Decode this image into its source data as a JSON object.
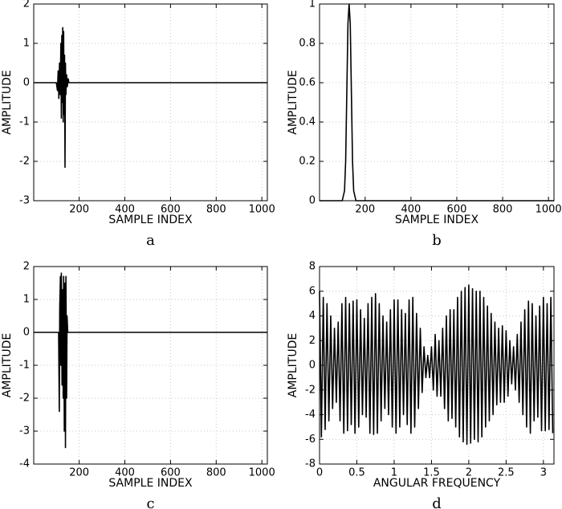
{
  "chart_data": [
    {
      "type": "line",
      "caption": "a",
      "xlabel": "SAMPLE INDEX",
      "ylabel": "AMPLITUDE",
      "color": "#000000",
      "grid": true,
      "xlim": [
        1,
        1024
      ],
      "xticks": [
        200,
        400,
        600,
        800,
        1000
      ],
      "ylim": [
        -3,
        2
      ],
      "yticks": [
        -3,
        -2,
        -1,
        0,
        1,
        2
      ],
      "x": [
        1,
        100,
        105,
        108,
        111,
        114,
        117,
        120,
        122,
        124,
        126,
        128,
        130,
        132,
        134,
        136,
        138,
        140,
        142,
        145,
        148,
        152,
        155,
        1024
      ],
      "values": [
        0,
        0,
        -0.2,
        0.3,
        -0.4,
        0.5,
        -0.3,
        1.0,
        -0.9,
        1.2,
        -0.5,
        1.4,
        -1.0,
        1.3,
        -0.8,
        0.7,
        -2.15,
        0.5,
        -0.3,
        0.2,
        -0.1,
        0.1,
        0,
        0
      ]
    },
    {
      "type": "line",
      "caption": "b",
      "xlabel": "SAMPLE INDEX",
      "ylabel": "AMPLITUDE",
      "color": "#000000",
      "grid": true,
      "xlim": [
        1,
        1024
      ],
      "xticks": [
        200,
        400,
        600,
        800,
        1000
      ],
      "ylim": [
        0,
        1
      ],
      "yticks": [
        0,
        0.2,
        0.4,
        0.6,
        0.8,
        1
      ],
      "x": [
        1,
        100,
        110,
        115,
        120,
        125,
        130,
        135,
        140,
        145,
        150,
        160,
        1024
      ],
      "values": [
        0,
        0,
        0.05,
        0.2,
        0.55,
        0.9,
        1,
        0.9,
        0.55,
        0.2,
        0.05,
        0,
        0
      ]
    },
    {
      "type": "line",
      "caption": "c",
      "xlabel": "SAMPLE INDEX",
      "ylabel": "AMPLITUDE",
      "color": "#000000",
      "grid": true,
      "xlim": [
        1,
        1024
      ],
      "xticks": [
        200,
        400,
        600,
        800,
        1000
      ],
      "ylim": [
        -4,
        2
      ],
      "yticks": [
        -4,
        -3,
        -2,
        -1,
        0,
        1,
        2
      ],
      "x": [
        1,
        110,
        113,
        115,
        118,
        120,
        122,
        125,
        128,
        130,
        132,
        135,
        138,
        140,
        142,
        145,
        147,
        150,
        1024
      ],
      "values": [
        0,
        0,
        -2.4,
        0.8,
        1.7,
        -1.0,
        1.8,
        -1.6,
        1.3,
        -2.0,
        1.7,
        -3.0,
        1.5,
        -3.5,
        1.7,
        -2.0,
        0.5,
        0,
        0
      ]
    },
    {
      "type": "line",
      "caption": "d",
      "xlabel": "ANGULAR FREQUENCY",
      "ylabel": "AMPLITUDE",
      "color": "#000000",
      "grid": true,
      "xlim": [
        0,
        3.1416
      ],
      "xticks": [
        0,
        0.5,
        1,
        1.5,
        2,
        2.5,
        3
      ],
      "ylim": [
        -8,
        8
      ],
      "yticks": [
        -8,
        -6,
        -4,
        -2,
        0,
        2,
        4,
        6,
        8
      ],
      "x": [
        0,
        0.025,
        0.05,
        0.075,
        0.1,
        0.125,
        0.15,
        0.175,
        0.2,
        0.225,
        0.25,
        0.275,
        0.3,
        0.325,
        0.35,
        0.375,
        0.4,
        0.425,
        0.45,
        0.475,
        0.5,
        0.525,
        0.55,
        0.575,
        0.6,
        0.625,
        0.65,
        0.675,
        0.7,
        0.725,
        0.75,
        0.775,
        0.8,
        0.825,
        0.85,
        0.875,
        0.9,
        0.925,
        0.95,
        0.975,
        1,
        1.025,
        1.05,
        1.075,
        1.1,
        1.125,
        1.15,
        1.175,
        1.2,
        1.225,
        1.25,
        1.275,
        1.3,
        1.325,
        1.35,
        1.375,
        1.4,
        1.425,
        1.45,
        1.475,
        1.5,
        1.525,
        1.55,
        1.575,
        1.6,
        1.625,
        1.65,
        1.675,
        1.7,
        1.725,
        1.75,
        1.775,
        1.8,
        1.825,
        1.85,
        1.875,
        1.9,
        1.925,
        1.95,
        1.975,
        2,
        2.025,
        2.05,
        2.075,
        2.1,
        2.125,
        2.15,
        2.175,
        2.2,
        2.225,
        2.25,
        2.275,
        2.3,
        2.325,
        2.35,
        2.375,
        2.4,
        2.425,
        2.45,
        2.475,
        2.5,
        2.525,
        2.55,
        2.575,
        2.6,
        2.625,
        2.65,
        2.675,
        2.7,
        2.725,
        2.75,
        2.775,
        2.8,
        2.825,
        2.85,
        2.875,
        2.9,
        2.925,
        2.95,
        2.975,
        3,
        3.025,
        3.05,
        3.075,
        3.1,
        3.125
      ],
      "values": [
        6,
        -5.8,
        5.5,
        -5.2,
        5,
        -4.5,
        4,
        -3.5,
        3,
        -3,
        3.5,
        -4.5,
        5,
        -5.5,
        5.5,
        -5.3,
        5,
        -4.8,
        5.2,
        -5.5,
        5.3,
        -5,
        4.5,
        -4,
        3.8,
        -4.2,
        5,
        -5.5,
        5.5,
        -5.6,
        5.8,
        -5.5,
        5,
        -4.5,
        4,
        -3.5,
        3.5,
        -4,
        4.5,
        -5,
        5.3,
        -5.5,
        5.3,
        -5,
        4.5,
        -4,
        4.2,
        -4.8,
        5.3,
        -5.5,
        5.5,
        -5,
        4.2,
        -3.5,
        3,
        -2.2,
        1.5,
        -1,
        0.8,
        -1,
        1.5,
        -2,
        2.5,
        -2.5,
        2,
        -2.5,
        3,
        -3.5,
        4,
        -4.5,
        4.5,
        -4.3,
        4.5,
        -5,
        5.5,
        -5.8,
        6,
        -6.2,
        6.3,
        -6.4,
        6.5,
        -6.3,
        6.2,
        -6,
        6,
        -6.2,
        6,
        -5.8,
        5.5,
        -5,
        4.8,
        -4.5,
        4.2,
        -4,
        3.5,
        -3.2,
        3,
        -3,
        3.2,
        -3,
        2.8,
        -2.5,
        2,
        -1.5,
        1.5,
        -2,
        2.5,
        -3,
        3.5,
        -4,
        4.5,
        -5,
        5.2,
        -5.5,
        5,
        -4.5,
        4,
        -4.2,
        4.8,
        -5.3,
        5.5,
        -5.3,
        5,
        -5.2,
        5.5,
        -5.5
      ]
    }
  ]
}
